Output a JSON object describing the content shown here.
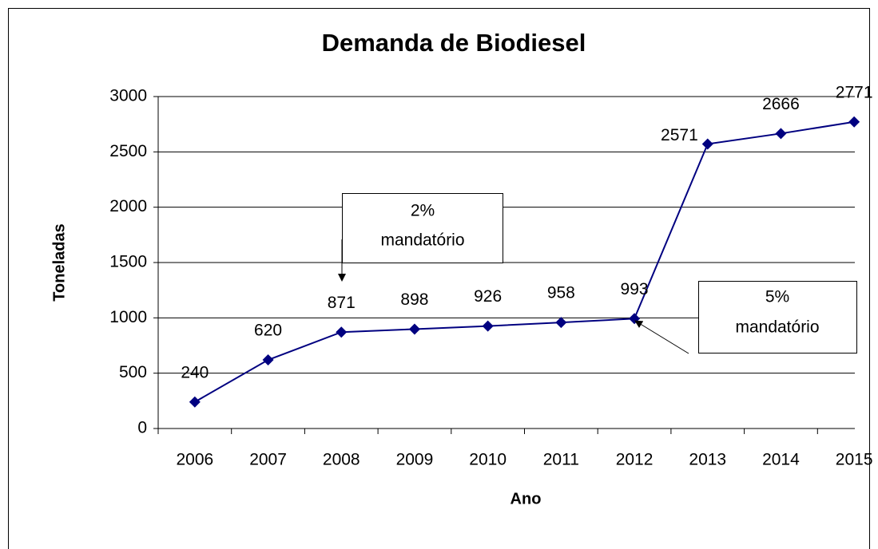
{
  "chart_data": {
    "type": "line",
    "title": "Demanda de Biodiesel",
    "x_label": "Ano",
    "y_label": "Toneladas",
    "categories": [
      "2006",
      "2007",
      "2008",
      "2009",
      "2010",
      "2011",
      "2012",
      "2013",
      "2014",
      "2015"
    ],
    "series": [
      {
        "name": "Demanda",
        "color": "#000080",
        "values": [
          240,
          620,
          871,
          898,
          926,
          958,
          993,
          2571,
          2666,
          2771
        ]
      }
    ],
    "ylim": [
      0,
      3000
    ],
    "yticks": [
      0,
      500,
      1000,
      1500,
      2000,
      2500,
      3000
    ],
    "grid": true,
    "annotations": [
      {
        "lines": [
          "2%",
          "mandatório"
        ]
      },
      {
        "lines": [
          "5%",
          "mandatório"
        ]
      }
    ]
  }
}
